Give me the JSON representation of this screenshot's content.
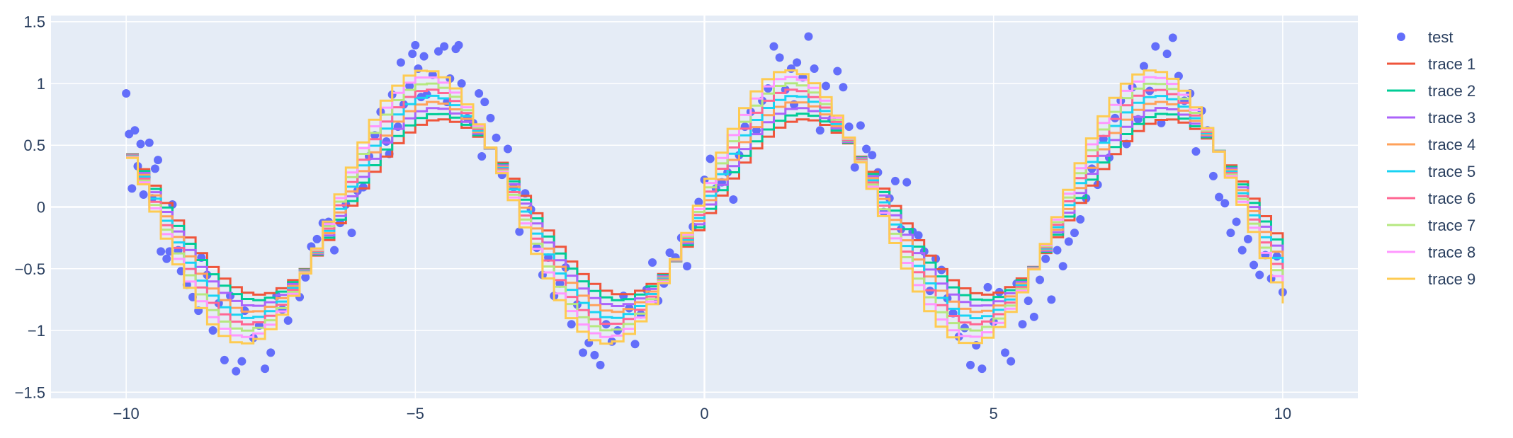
{
  "chart_data": {
    "type": "line",
    "title": "",
    "xlabel": "",
    "ylabel": "",
    "xlim": [
      -11.3,
      11.3
    ],
    "ylim": [
      -1.55,
      1.55
    ],
    "x_ticks": [
      -10,
      -5,
      0,
      5,
      10
    ],
    "y_ticks": [
      -1.5,
      -1,
      -0.5,
      0,
      0.5,
      1,
      1.5
    ],
    "x_tick_labels": [
      "−10",
      "−5",
      "0",
      "5",
      "10"
    ],
    "y_tick_labels": [
      "−1.5",
      "−1",
      "−0.5",
      "0",
      "0.5",
      "1",
      "1.5"
    ],
    "grid": true,
    "legend_position": "right",
    "background_color": "#e5ecf6",
    "grid_color": "#ffffff",
    "text_color": "#2a3f5f",
    "scatter_series": {
      "name": "test",
      "color": "#636efa",
      "points": [
        [
          -10.0,
          0.92
        ],
        [
          -9.95,
          0.59
        ],
        [
          -9.9,
          0.15
        ],
        [
          -9.85,
          0.62
        ],
        [
          -9.8,
          0.33
        ],
        [
          -9.75,
          0.51
        ],
        [
          -9.7,
          0.1
        ],
        [
          -9.65,
          0.24
        ],
        [
          -9.6,
          0.52
        ],
        [
          -9.55,
          0.07
        ],
        [
          -9.5,
          0.31
        ],
        [
          -9.45,
          0.38
        ],
        [
          -9.4,
          -0.36
        ],
        [
          -9.3,
          -0.42
        ],
        [
          -9.25,
          -0.36
        ],
        [
          -9.2,
          0.02
        ],
        [
          -9.1,
          -0.35
        ],
        [
          -9.05,
          -0.52
        ],
        [
          -8.95,
          -0.63
        ],
        [
          -8.85,
          -0.73
        ],
        [
          -8.75,
          -0.84
        ],
        [
          -8.7,
          -0.41
        ],
        [
          -8.6,
          -0.55
        ],
        [
          -8.5,
          -1.0
        ],
        [
          -8.4,
          -0.78
        ],
        [
          -8.3,
          -1.24
        ],
        [
          -8.2,
          -0.72
        ],
        [
          -8.1,
          -1.33
        ],
        [
          -8.0,
          -1.25
        ],
        [
          -7.95,
          -0.84
        ],
        [
          -7.8,
          -1.06
        ],
        [
          -7.7,
          -0.96
        ],
        [
          -7.6,
          -1.31
        ],
        [
          -7.5,
          -1.18
        ],
        [
          -7.4,
          -0.72
        ],
        [
          -7.3,
          -0.83
        ],
        [
          -7.2,
          -0.92
        ],
        [
          -7.1,
          -0.69
        ],
        [
          -7.0,
          -0.73
        ],
        [
          -6.9,
          -0.57
        ],
        [
          -6.8,
          -0.32
        ],
        [
          -6.7,
          -0.26
        ],
        [
          -6.6,
          -0.13
        ],
        [
          -6.5,
          -0.12
        ],
        [
          -6.4,
          -0.35
        ],
        [
          -6.3,
          -0.13
        ],
        [
          -6.2,
          0.02
        ],
        [
          -6.1,
          -0.21
        ],
        [
          -6.0,
          0.13
        ],
        [
          -5.9,
          0.16
        ],
        [
          -5.8,
          0.41
        ],
        [
          -5.7,
          0.58
        ],
        [
          -5.6,
          0.77
        ],
        [
          -5.5,
          0.53
        ],
        [
          -5.45,
          0.43
        ],
        [
          -5.4,
          0.91
        ],
        [
          -5.3,
          0.65
        ],
        [
          -5.25,
          1.17
        ],
        [
          -5.2,
          0.83
        ],
        [
          -5.1,
          0.98
        ],
        [
          -5.05,
          1.24
        ],
        [
          -5.0,
          1.31
        ],
        [
          -4.95,
          1.12
        ],
        [
          -4.9,
          0.89
        ],
        [
          -4.85,
          1.22
        ],
        [
          -4.8,
          0.91
        ],
        [
          -4.7,
          1.07
        ],
        [
          -4.6,
          1.26
        ],
        [
          -4.5,
          1.3
        ],
        [
          -4.45,
          0.85
        ],
        [
          -4.4,
          1.04
        ],
        [
          -4.3,
          1.28
        ],
        [
          -4.25,
          1.31
        ],
        [
          -4.2,
          1.0
        ],
        [
          -4.1,
          0.72
        ],
        [
          -4.0,
          0.68
        ],
        [
          -3.9,
          0.92
        ],
        [
          -3.85,
          0.41
        ],
        [
          -3.8,
          0.85
        ],
        [
          -3.7,
          0.72
        ],
        [
          -3.6,
          0.56
        ],
        [
          -3.5,
          0.26
        ],
        [
          -3.4,
          0.47
        ],
        [
          -3.3,
          0.16
        ],
        [
          -3.2,
          -0.2
        ],
        [
          -3.1,
          0.11
        ],
        [
          -3.0,
          -0.02
        ],
        [
          -2.9,
          -0.33
        ],
        [
          -2.8,
          -0.55
        ],
        [
          -2.7,
          -0.41
        ],
        [
          -2.6,
          -0.72
        ],
        [
          -2.5,
          -0.62
        ],
        [
          -2.4,
          -0.49
        ],
        [
          -2.3,
          -0.95
        ],
        [
          -2.2,
          -0.79
        ],
        [
          -2.1,
          -1.18
        ],
        [
          -2.0,
          -1.1
        ],
        [
          -1.9,
          -1.2
        ],
        [
          -1.8,
          -1.28
        ],
        [
          -1.7,
          -0.95
        ],
        [
          -1.6,
          -1.09
        ],
        [
          -1.5,
          -1.0
        ],
        [
          -1.4,
          -0.72
        ],
        [
          -1.3,
          -0.82
        ],
        [
          -1.2,
          -1.11
        ],
        [
          -1.1,
          -0.87
        ],
        [
          -1.0,
          -0.67
        ],
        [
          -0.9,
          -0.45
        ],
        [
          -0.8,
          -0.76
        ],
        [
          -0.7,
          -0.62
        ],
        [
          -0.6,
          -0.37
        ],
        [
          -0.5,
          -0.41
        ],
        [
          -0.4,
          -0.25
        ],
        [
          -0.3,
          -0.48
        ],
        [
          -0.2,
          -0.16
        ],
        [
          -0.1,
          0.04
        ],
        [
          0.0,
          0.22
        ],
        [
          0.1,
          0.39
        ],
        [
          0.2,
          0.15
        ],
        [
          0.3,
          0.2
        ],
        [
          0.4,
          0.28
        ],
        [
          0.5,
          0.06
        ],
        [
          0.6,
          0.42
        ],
        [
          0.7,
          0.65
        ],
        [
          0.8,
          0.77
        ],
        [
          0.9,
          0.62
        ],
        [
          1.0,
          0.86
        ],
        [
          1.1,
          0.96
        ],
        [
          1.2,
          1.3
        ],
        [
          1.3,
          1.21
        ],
        [
          1.4,
          0.95
        ],
        [
          1.5,
          1.12
        ],
        [
          1.55,
          0.83
        ],
        [
          1.6,
          1.17
        ],
        [
          1.7,
          1.05
        ],
        [
          1.8,
          1.38
        ],
        [
          1.9,
          1.12
        ],
        [
          2.0,
          0.62
        ],
        [
          2.1,
          0.98
        ],
        [
          2.2,
          0.71
        ],
        [
          2.3,
          1.1
        ],
        [
          2.4,
          0.97
        ],
        [
          2.5,
          0.65
        ],
        [
          2.6,
          0.32
        ],
        [
          2.7,
          0.66
        ],
        [
          2.8,
          0.47
        ],
        [
          2.9,
          0.42
        ],
        [
          3.0,
          0.28
        ],
        [
          3.1,
          -0.04
        ],
        [
          3.2,
          0.07
        ],
        [
          3.3,
          0.21
        ],
        [
          3.4,
          -0.18
        ],
        [
          3.5,
          0.2
        ],
        [
          3.6,
          -0.2
        ],
        [
          3.7,
          -0.23
        ],
        [
          3.8,
          -0.36
        ],
        [
          3.9,
          -0.68
        ],
        [
          4.0,
          -0.42
        ],
        [
          4.1,
          -0.51
        ],
        [
          4.2,
          -0.74
        ],
        [
          4.3,
          -0.86
        ],
        [
          4.4,
          -1.05
        ],
        [
          4.5,
          -0.98
        ],
        [
          4.6,
          -1.28
        ],
        [
          4.7,
          -1.12
        ],
        [
          4.8,
          -1.31
        ],
        [
          4.9,
          -0.65
        ],
        [
          5.0,
          -0.93
        ],
        [
          5.1,
          -0.69
        ],
        [
          5.2,
          -1.18
        ],
        [
          5.3,
          -1.25
        ],
        [
          5.4,
          -0.62
        ],
        [
          5.5,
          -0.95
        ],
        [
          5.6,
          -0.76
        ],
        [
          5.7,
          -0.89
        ],
        [
          5.8,
          -0.59
        ],
        [
          5.9,
          -0.42
        ],
        [
          6.0,
          -0.75
        ],
        [
          6.1,
          -0.35
        ],
        [
          6.2,
          -0.48
        ],
        [
          6.3,
          -0.28
        ],
        [
          6.4,
          -0.21
        ],
        [
          6.5,
          -0.1
        ],
        [
          6.6,
          0.07
        ],
        [
          6.7,
          0.31
        ],
        [
          6.8,
          0.18
        ],
        [
          6.9,
          0.55
        ],
        [
          7.0,
          0.4
        ],
        [
          7.1,
          0.72
        ],
        [
          7.2,
          0.86
        ],
        [
          7.3,
          0.51
        ],
        [
          7.4,
          0.97
        ],
        [
          7.5,
          0.71
        ],
        [
          7.6,
          1.14
        ],
        [
          7.7,
          0.94
        ],
        [
          7.8,
          1.3
        ],
        [
          7.9,
          0.68
        ],
        [
          8.0,
          1.24
        ],
        [
          8.1,
          1.37
        ],
        [
          8.2,
          1.06
        ],
        [
          8.3,
          0.86
        ],
        [
          8.4,
          0.92
        ],
        [
          8.5,
          0.45
        ],
        [
          8.6,
          0.78
        ],
        [
          8.7,
          0.62
        ],
        [
          8.8,
          0.25
        ],
        [
          8.9,
          0.08
        ],
        [
          9.0,
          0.03
        ],
        [
          9.1,
          -0.21
        ],
        [
          9.2,
          -0.12
        ],
        [
          9.3,
          -0.35
        ],
        [
          9.4,
          -0.26
        ],
        [
          9.5,
          -0.47
        ],
        [
          9.6,
          -0.55
        ],
        [
          9.7,
          -0.39
        ],
        [
          9.8,
          -0.58
        ],
        [
          9.9,
          -0.4
        ],
        [
          10.0,
          -0.69
        ]
      ]
    },
    "line_series": [
      {
        "name": "trace 1",
        "color": "#EF553B",
        "amplitude": 0.7
      },
      {
        "name": "trace 2",
        "color": "#00cc96",
        "amplitude": 0.75
      },
      {
        "name": "trace 3",
        "color": "#ab63fa",
        "amplitude": 0.8
      },
      {
        "name": "trace 4",
        "color": "#FFA15A",
        "amplitude": 0.85
      },
      {
        "name": "trace 5",
        "color": "#19d3f3",
        "amplitude": 0.9
      },
      {
        "name": "trace 6",
        "color": "#FF6692",
        "amplitude": 0.95
      },
      {
        "name": "trace 7",
        "color": "#B6E880",
        "amplitude": 1.0
      },
      {
        "name": "trace 8",
        "color": "#FF97FF",
        "amplitude": 1.05
      },
      {
        "name": "trace 9",
        "color": "#FECB52",
        "amplitude": 1.1
      }
    ]
  }
}
